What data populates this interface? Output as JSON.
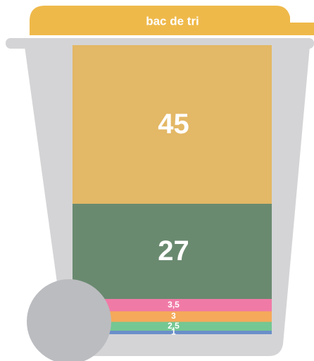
{
  "chart_data": {
    "type": "stacked_bar",
    "title": "bac de tri",
    "values": [
      45,
      27,
      3.5,
      3,
      2.5,
      1
    ],
    "value_labels": [
      "45",
      "27",
      "3,5",
      "3",
      "2,5",
      "1"
    ],
    "colors": [
      "#e3b866",
      "#6a8a70",
      "#f07aa6",
      "#f5a95a",
      "#74c793",
      "#6b8fc9"
    ]
  }
}
